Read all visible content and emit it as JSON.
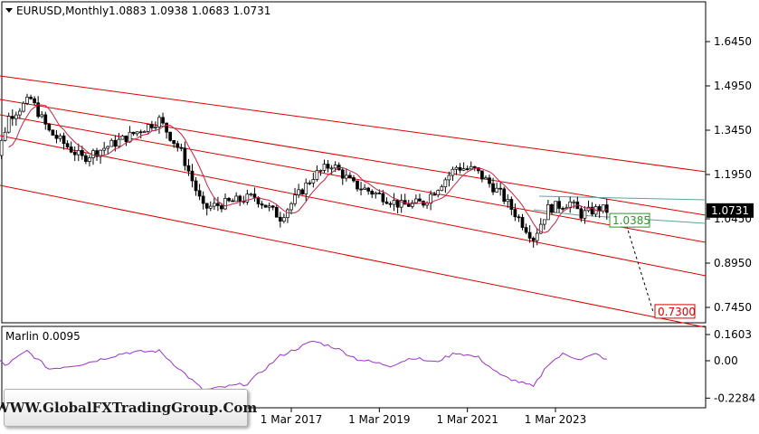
{
  "chart_data": [
    {
      "type": "candlestick",
      "title": "EURUSD,Monthly",
      "ohlc_header": "1.0883 1.0938 1.0683 1.0731",
      "ylim": [
        0.7,
        1.7
      ],
      "y_ticks": [
        0.745,
        0.895,
        1.045,
        1.195,
        1.345,
        1.495,
        1.645
      ],
      "y_tick_labels": [
        "0.7450",
        "0.8950",
        "1.0450",
        "1.1950",
        "1.3450",
        "1.4950",
        "1.6450"
      ],
      "current_price_label": "1.0731",
      "current_price": 1.0731,
      "target_labels": [
        {
          "text": "1.0385",
          "value": 1.0385,
          "color": "#2a9a2a"
        },
        {
          "text": "0.7300",
          "value": 0.73,
          "color": "#dd0000"
        }
      ],
      "x_tick_labels": [
        "1 Mar 2017",
        "1 Mar 2019",
        "1 Mar 2021",
        "1 Mar 2023"
      ],
      "x_tick_dates": [
        "2017-03",
        "2019-03",
        "2021-03",
        "2023-03"
      ],
      "close_series": [
        {
          "date": "2010-03",
          "value": 1.4
        },
        {
          "date": "2010-06",
          "value": 1.22
        },
        {
          "date": "2010-10",
          "value": 1.39
        },
        {
          "date": "2011-04",
          "value": 1.45
        },
        {
          "date": "2011-09",
          "value": 1.34
        },
        {
          "date": "2012-06",
          "value": 1.25
        },
        {
          "date": "2013-06",
          "value": 1.32
        },
        {
          "date": "2014-03",
          "value": 1.38
        },
        {
          "date": "2014-09",
          "value": 1.27
        },
        {
          "date": "2015-03",
          "value": 1.08
        },
        {
          "date": "2016-05",
          "value": 1.12
        },
        {
          "date": "2016-12",
          "value": 1.05
        },
        {
          "date": "2017-09",
          "value": 1.19
        },
        {
          "date": "2018-02",
          "value": 1.23
        },
        {
          "date": "2018-08",
          "value": 1.16
        },
        {
          "date": "2019-04",
          "value": 1.12
        },
        {
          "date": "2019-09",
          "value": 1.09
        },
        {
          "date": "2020-03",
          "value": 1.1
        },
        {
          "date": "2020-12",
          "value": 1.22
        },
        {
          "date": "2021-05",
          "value": 1.21
        },
        {
          "date": "2021-12",
          "value": 1.13
        },
        {
          "date": "2022-09",
          "value": 0.98
        },
        {
          "date": "2023-01",
          "value": 1.08
        },
        {
          "date": "2023-07",
          "value": 1.1
        },
        {
          "date": "2023-10",
          "value": 1.06
        },
        {
          "date": "2024-03",
          "value": 1.08
        },
        {
          "date": "2024-05",
          "value": 1.0731
        }
      ],
      "channel_lines_color": "#dd0000",
      "legend": "none",
      "grid": false
    },
    {
      "type": "line",
      "title": "Marlin 0.0095",
      "ylim": [
        -0.2284,
        0.1603
      ],
      "y_tick_labels": [
        "0.1603",
        "0.00",
        "-0.2284"
      ],
      "y_ticks": [
        0.1603,
        0.0,
        -0.2284
      ],
      "series_color": "#9933cc",
      "values": [
        {
          "date": "2010-03",
          "value": 0.09
        },
        {
          "date": "2010-09",
          "value": -0.03
        },
        {
          "date": "2011-03",
          "value": 0.06
        },
        {
          "date": "2011-09",
          "value": -0.05
        },
        {
          "date": "2012-06",
          "value": -0.02
        },
        {
          "date": "2013-06",
          "value": 0.05
        },
        {
          "date": "2014-03",
          "value": 0.06
        },
        {
          "date": "2014-09",
          "value": -0.06
        },
        {
          "date": "2015-03",
          "value": -0.18
        },
        {
          "date": "2016-03",
          "value": -0.14
        },
        {
          "date": "2016-12",
          "value": 0.03
        },
        {
          "date": "2017-09",
          "value": 0.12
        },
        {
          "date": "2018-03",
          "value": 0.08
        },
        {
          "date": "2018-09",
          "value": 0.01
        },
        {
          "date": "2019-06",
          "value": -0.03
        },
        {
          "date": "2019-12",
          "value": 0.02
        },
        {
          "date": "2020-06",
          "value": -0.01
        },
        {
          "date": "2020-12",
          "value": 0.05
        },
        {
          "date": "2021-06",
          "value": 0.02
        },
        {
          "date": "2021-12",
          "value": -0.09
        },
        {
          "date": "2022-09",
          "value": -0.16
        },
        {
          "date": "2023-01",
          "value": -0.02
        },
        {
          "date": "2023-05",
          "value": 0.04
        },
        {
          "date": "2023-10",
          "value": 0.01
        },
        {
          "date": "2024-02",
          "value": 0.04
        },
        {
          "date": "2024-05",
          "value": 0.0095
        }
      ]
    }
  ],
  "watermark": "WWW.GlobalFXTradingGroup.Com",
  "colors": {
    "bull_candle": "#ffffff",
    "bear_candle": "#000000",
    "ma_line": "#cc2244",
    "teal_line": "#5fa0a0",
    "background": "#ffffff",
    "axis": "#000000"
  }
}
